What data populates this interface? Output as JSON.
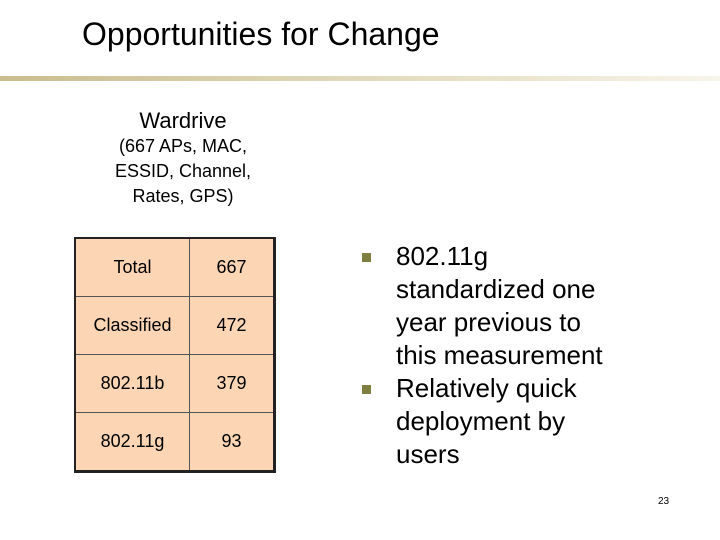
{
  "header": {
    "title": "Opportunities for Change"
  },
  "panel": {
    "heading": "Wardrive",
    "subheading": "(667 APs, MAC, ESSID, Channel, Rates, GPS)"
  },
  "table": {
    "rows": [
      [
        "Total",
        "667"
      ],
      [
        "Classified",
        "472"
      ],
      [
        "802.11b",
        "379"
      ],
      [
        "802.11g",
        "93"
      ]
    ]
  },
  "bullets": [
    "802.11g standardized one year previous to this measurement",
    "Relatively quick deployment by users"
  ],
  "footer": {
    "page_number": "23"
  }
}
